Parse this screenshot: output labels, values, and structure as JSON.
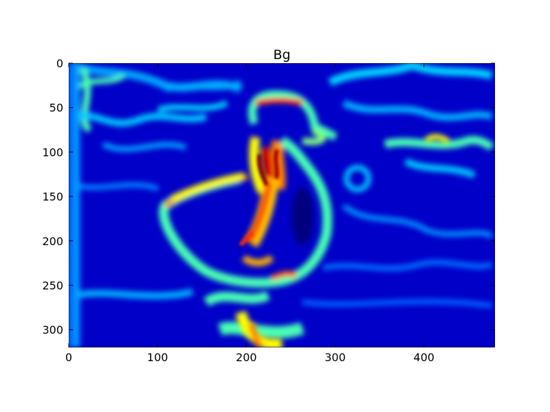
{
  "chart_data": {
    "type": "heatmap",
    "title": "Bg",
    "xlabel": "",
    "ylabel": "",
    "xlim": [
      0,
      480
    ],
    "ylim": [
      320,
      0
    ],
    "x_origin": "top-left",
    "colormap": "jet",
    "grid": false,
    "legend": "none",
    "x_ticks": [
      0,
      100,
      200,
      300,
      400
    ],
    "y_ticks": [
      0,
      50,
      100,
      150,
      200,
      250,
      300
    ],
    "x_tick_labels": [
      "0",
      "100",
      "200",
      "300",
      "400"
    ],
    "y_tick_labels": [
      "0",
      "50",
      "100",
      "150",
      "200",
      "250",
      "300"
    ],
    "image_description_values": {
      "low": 0,
      "high": 1
    }
  },
  "colors": {
    "background": "#00007f",
    "low": "#0000ff",
    "mid_low": "#00b3ff",
    "mid": "#7fff7f",
    "mid_high": "#ffff00",
    "high": "#ff2a00",
    "max": "#8b0000"
  }
}
